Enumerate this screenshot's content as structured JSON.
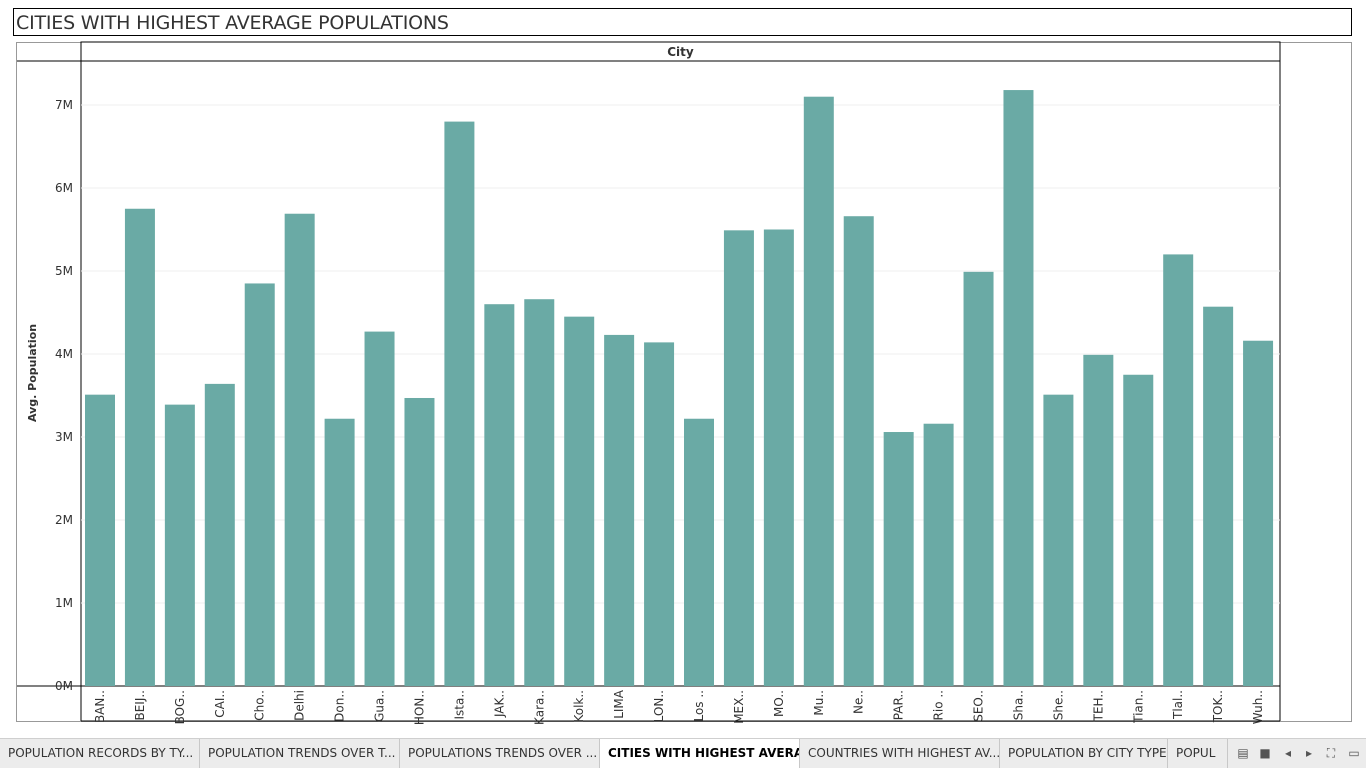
{
  "title": "CITIES WITH HIGHEST AVERAGE POPULATIONS",
  "chart_data": {
    "type": "bar",
    "header": "City",
    "ylabel": "Avg. Population",
    "ylim": [
      0,
      7600000
    ],
    "y_ticks": [
      0,
      1000000,
      2000000,
      3000000,
      4000000,
      5000000,
      6000000,
      7000000
    ],
    "y_tick_labels": [
      "0M",
      "1M",
      "2M",
      "3M",
      "4M",
      "5M",
      "6M",
      "7M"
    ],
    "grid": "horizontal",
    "bar_color": "#6aaaa5",
    "categories": [
      "BAN..",
      "BEIJ..",
      "BOG..",
      "CAI..",
      "Cho..",
      "Delhi",
      "Don..",
      "Gua..",
      "HON..",
      "Ista..",
      "JAK..",
      "Kara..",
      "Kolk..",
      "LIMA",
      "LON..",
      "Los ..",
      "MEX..",
      "MO..",
      "Mu..",
      "Ne..",
      "PAR..",
      "Rio ..",
      "SEO..",
      "Sha..",
      "She..",
      "TEH..",
      "Tian..",
      "Tlal..",
      "TOK..",
      "Wuh.."
    ],
    "values": [
      3510000,
      5750000,
      3390000,
      3640000,
      4850000,
      5690000,
      3220000,
      4270000,
      3470000,
      6800000,
      4600000,
      4660000,
      4450000,
      4230000,
      4140000,
      3220000,
      5490000,
      5500000,
      7100000,
      5660000,
      3060000,
      3160000,
      4990000,
      7180000,
      3510000,
      3990000,
      3750000,
      5200000,
      4570000,
      4160000
    ]
  },
  "tabs": [
    {
      "label": "POPULATION RECORDS BY TY...",
      "active": false
    },
    {
      "label": "POPULATION TRENDS OVER T...",
      "active": false
    },
    {
      "label": "POPULATIONS TRENDS OVER ...",
      "active": false
    },
    {
      "label": "CITIES WITH HIGHEST AVERA...",
      "active": true
    },
    {
      "label": "COUNTRIES WITH HIGHEST AV...",
      "active": false
    },
    {
      "label": "POPULATION BY CITY TYPE",
      "active": false
    },
    {
      "label": "POPUL",
      "active": false
    }
  ],
  "tab_controls": [
    {
      "icon": "filmstrip-icon",
      "glyph": "▤"
    },
    {
      "icon": "tab-grid-icon",
      "glyph": "■"
    },
    {
      "icon": "prev-tab-icon",
      "glyph": "◂"
    },
    {
      "icon": "next-tab-icon",
      "glyph": "▸"
    },
    {
      "icon": "fullscreen-icon",
      "glyph": "⛶"
    },
    {
      "icon": "present-icon",
      "glyph": "▭"
    }
  ]
}
